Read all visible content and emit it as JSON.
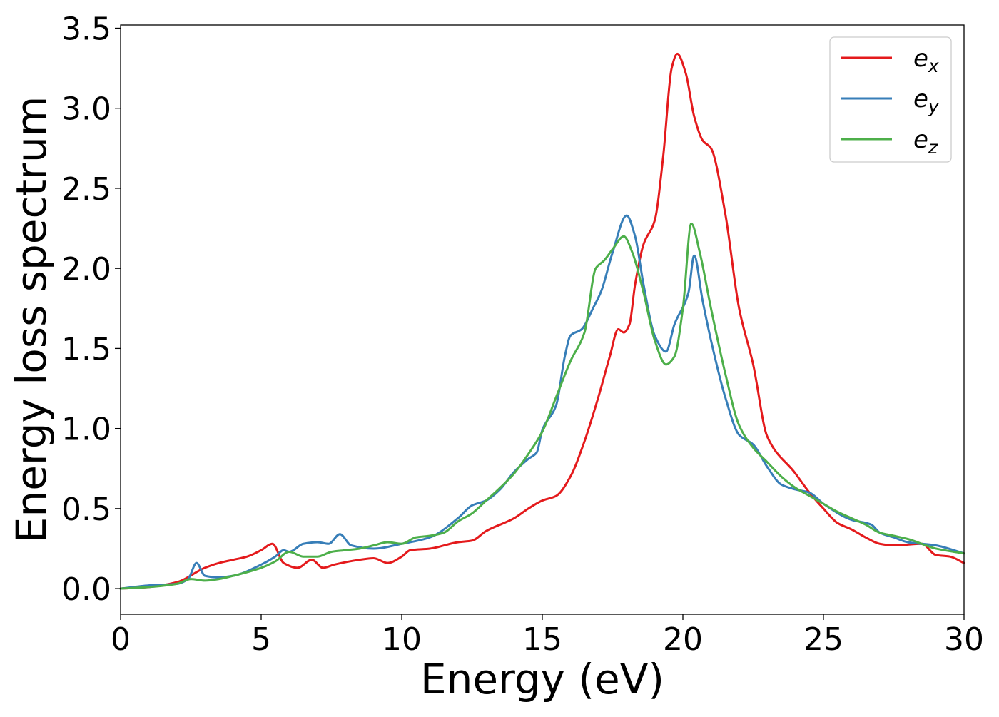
{
  "chart_data": {
    "type": "line",
    "title": "",
    "xlabel": "Energy (eV)",
    "ylabel": "Energy loss spectrum",
    "xlim": [
      0,
      30
    ],
    "ylim": [
      -0.16,
      3.52
    ],
    "xticks": [
      0,
      5,
      10,
      15,
      20,
      25,
      30
    ],
    "xtick_labels": [
      "0",
      "5",
      "10",
      "15",
      "20",
      "25",
      "30"
    ],
    "yticks": [
      0.0,
      0.5,
      1.0,
      1.5,
      2.0,
      2.5,
      3.0,
      3.5
    ],
    "ytick_labels": [
      "0.0",
      "0.5",
      "1.0",
      "1.5",
      "2.0",
      "2.5",
      "3.0",
      "3.5"
    ],
    "grid": false,
    "legend_position": "top-right",
    "series": [
      {
        "name": "e_x",
        "legend_base": "e",
        "legend_sub": "x",
        "color": "#e41a1c",
        "points": [
          [
            0,
            0
          ],
          [
            1,
            0.01
          ],
          [
            2,
            0.04
          ],
          [
            3,
            0.13
          ],
          [
            3.5,
            0.16
          ],
          [
            4,
            0.18
          ],
          [
            4.5,
            0.2
          ],
          [
            5,
            0.24
          ],
          [
            5.4,
            0.28
          ],
          [
            5.8,
            0.16
          ],
          [
            6.3,
            0.13
          ],
          [
            6.8,
            0.18
          ],
          [
            7.2,
            0.13
          ],
          [
            7.6,
            0.15
          ],
          [
            8.5,
            0.18
          ],
          [
            9,
            0.19
          ],
          [
            9.5,
            0.16
          ],
          [
            10,
            0.2
          ],
          [
            10.3,
            0.24
          ],
          [
            11,
            0.25
          ],
          [
            12,
            0.29
          ],
          [
            12.5,
            0.3
          ],
          [
            13,
            0.36
          ],
          [
            14,
            0.44
          ],
          [
            14.5,
            0.5
          ],
          [
            15,
            0.55
          ],
          [
            15.5,
            0.58
          ],
          [
            16,
            0.7
          ],
          [
            16.5,
            0.92
          ],
          [
            17,
            1.2
          ],
          [
            17.4,
            1.45
          ],
          [
            17.7,
            1.62
          ],
          [
            17.9,
            1.6
          ],
          [
            18.1,
            1.65
          ],
          [
            18.3,
            1.9
          ],
          [
            18.6,
            2.15
          ],
          [
            19.0,
            2.3
          ],
          [
            19.3,
            2.7
          ],
          [
            19.6,
            3.25
          ],
          [
            19.8,
            3.34
          ],
          [
            20.1,
            3.22
          ],
          [
            20.4,
            2.95
          ],
          [
            20.7,
            2.8
          ],
          [
            21,
            2.75
          ],
          [
            21.5,
            2.35
          ],
          [
            22,
            1.75
          ],
          [
            22.5,
            1.4
          ],
          [
            23,
            0.95
          ],
          [
            24,
            0.72
          ],
          [
            24.5,
            0.6
          ],
          [
            25,
            0.5
          ],
          [
            25.5,
            0.41
          ],
          [
            26,
            0.37
          ],
          [
            26.5,
            0.32
          ],
          [
            27,
            0.28
          ],
          [
            27.5,
            0.27
          ],
          [
            28.5,
            0.28
          ],
          [
            29,
            0.21
          ],
          [
            29.5,
            0.2
          ],
          [
            30,
            0.16
          ]
        ]
      },
      {
        "name": "e_y",
        "legend_base": "e",
        "legend_sub": "y",
        "color": "#377eb8",
        "points": [
          [
            0,
            0
          ],
          [
            1,
            0.02
          ],
          [
            2,
            0.03
          ],
          [
            2.4,
            0.06
          ],
          [
            2.7,
            0.16
          ],
          [
            3,
            0.08
          ],
          [
            3.5,
            0.07
          ],
          [
            4,
            0.08
          ],
          [
            5,
            0.15
          ],
          [
            5.5,
            0.2
          ],
          [
            5.8,
            0.24
          ],
          [
            6,
            0.23
          ],
          [
            6.5,
            0.28
          ],
          [
            7,
            0.29
          ],
          [
            7.4,
            0.28
          ],
          [
            7.8,
            0.34
          ],
          [
            8.2,
            0.27
          ],
          [
            9,
            0.25
          ],
          [
            10,
            0.28
          ],
          [
            11,
            0.32
          ],
          [
            12,
            0.44
          ],
          [
            12.5,
            0.52
          ],
          [
            13,
            0.55
          ],
          [
            13.5,
            0.62
          ],
          [
            14,
            0.73
          ],
          [
            14.5,
            0.81
          ],
          [
            14.8,
            0.85
          ],
          [
            15,
            0.99
          ],
          [
            15.5,
            1.15
          ],
          [
            15.8,
            1.45
          ],
          [
            16,
            1.58
          ],
          [
            16.4,
            1.62
          ],
          [
            16.8,
            1.75
          ],
          [
            17.1,
            1.86
          ],
          [
            17.5,
            2.1
          ],
          [
            18,
            2.33
          ],
          [
            18.3,
            2.2
          ],
          [
            18.6,
            1.9
          ],
          [
            19,
            1.58
          ],
          [
            19.4,
            1.48
          ],
          [
            19.7,
            1.65
          ],
          [
            20.2,
            1.85
          ],
          [
            20.4,
            2.08
          ],
          [
            20.7,
            1.8
          ],
          [
            21,
            1.55
          ],
          [
            21.5,
            1.2
          ],
          [
            22,
            0.96
          ],
          [
            22.5,
            0.9
          ],
          [
            23,
            0.76
          ],
          [
            23.5,
            0.65
          ],
          [
            24,
            0.62
          ],
          [
            24.5,
            0.6
          ],
          [
            25,
            0.53
          ],
          [
            26,
            0.43
          ],
          [
            26.7,
            0.4
          ],
          [
            27,
            0.35
          ],
          [
            27.5,
            0.32
          ],
          [
            28,
            0.29
          ],
          [
            29,
            0.27
          ],
          [
            30,
            0.22
          ]
        ]
      },
      {
        "name": "e_z",
        "legend_base": "e",
        "legend_sub": "z",
        "color": "#4daf4a",
        "points": [
          [
            0,
            0
          ],
          [
            1,
            0.01
          ],
          [
            2,
            0.03
          ],
          [
            2.5,
            0.06
          ],
          [
            3,
            0.05
          ],
          [
            3.5,
            0.06
          ],
          [
            4,
            0.08
          ],
          [
            5,
            0.13
          ],
          [
            5.5,
            0.17
          ],
          [
            6,
            0.23
          ],
          [
            6.5,
            0.2
          ],
          [
            7,
            0.2
          ],
          [
            7.5,
            0.23
          ],
          [
            8,
            0.24
          ],
          [
            8.5,
            0.25
          ],
          [
            9,
            0.27
          ],
          [
            9.5,
            0.29
          ],
          [
            10,
            0.28
          ],
          [
            10.5,
            0.32
          ],
          [
            11,
            0.33
          ],
          [
            11.5,
            0.35
          ],
          [
            12,
            0.42
          ],
          [
            12.5,
            0.47
          ],
          [
            13,
            0.55
          ],
          [
            13.5,
            0.63
          ],
          [
            14,
            0.72
          ],
          [
            14.5,
            0.84
          ],
          [
            15,
            0.98
          ],
          [
            15.5,
            1.2
          ],
          [
            16,
            1.42
          ],
          [
            16.5,
            1.6
          ],
          [
            16.9,
            2.0
          ],
          [
            17.2,
            2.05
          ],
          [
            17.5,
            2.12
          ],
          [
            17.9,
            2.2
          ],
          [
            18.2,
            2.1
          ],
          [
            18.6,
            1.85
          ],
          [
            19,
            1.55
          ],
          [
            19.4,
            1.4
          ],
          [
            19.7,
            1.45
          ],
          [
            20,
            1.75
          ],
          [
            20.3,
            2.28
          ],
          [
            20.6,
            2.1
          ],
          [
            21,
            1.75
          ],
          [
            21.5,
            1.35
          ],
          [
            22,
            1.02
          ],
          [
            22.5,
            0.88
          ],
          [
            23,
            0.79
          ],
          [
            23.5,
            0.7
          ],
          [
            24,
            0.63
          ],
          [
            24.5,
            0.58
          ],
          [
            25,
            0.53
          ],
          [
            25.5,
            0.48
          ],
          [
            26,
            0.44
          ],
          [
            26.5,
            0.4
          ],
          [
            27,
            0.35
          ],
          [
            27.5,
            0.33
          ],
          [
            28,
            0.31
          ],
          [
            29,
            0.25
          ],
          [
            30,
            0.22
          ]
        ]
      }
    ]
  }
}
